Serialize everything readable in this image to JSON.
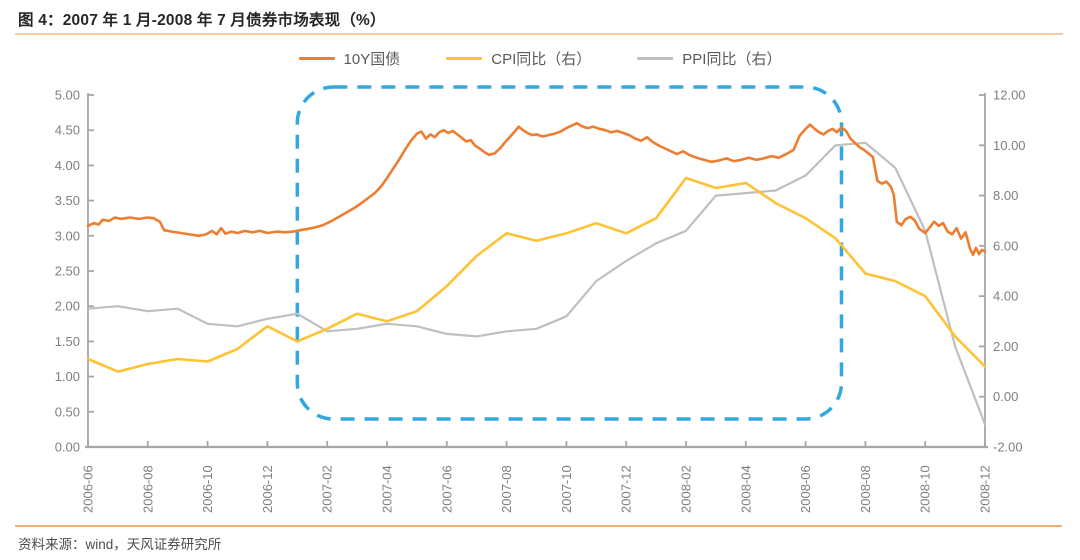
{
  "header": {
    "title": "图 4：2007 年 1 月-2008 年 7 月债券市场表现（%）"
  },
  "legend": {
    "items": [
      {
        "label": "10Y国债",
        "color": "#ED7D31"
      },
      {
        "label": "CPI同比（右）",
        "color": "#FFC234"
      },
      {
        "label": "PPI同比（右）",
        "color": "#BFBFBF"
      }
    ]
  },
  "footer": {
    "source": "资料来源：wind，天风证券研究所"
  },
  "colors": {
    "title_rule": "#F5C9A3",
    "bottom_rule": "#F1AC72",
    "highlight_box": "#31A8E0",
    "axis_line": "#A6A6A6",
    "axis_text": "#7F7F7F"
  },
  "chart_data": {
    "type": "line",
    "title": "图 4：2007 年 1 月-2008 年 7 月债券市场表现（%）",
    "x_tick_labels": [
      "2006-06",
      "2006-08",
      "2006-10",
      "2006-12",
      "2007-02",
      "2007-04",
      "2007-06",
      "2007-08",
      "2007-10",
      "2007-12",
      "2008-02",
      "2008-04",
      "2008-06",
      "2008-08",
      "2008-10",
      "2008-12"
    ],
    "x_range_months": [
      0,
      30
    ],
    "left_axis": {
      "range": [
        0,
        5
      ],
      "tick_step": 0.5,
      "tick_labels": [
        "0.00",
        "0.50",
        "1.00",
        "1.50",
        "2.00",
        "2.50",
        "3.00",
        "3.50",
        "4.00",
        "4.50",
        "5.00"
      ]
    },
    "right_axis": {
      "range": [
        -2,
        12
      ],
      "tick_step": 2,
      "tick_labels": [
        "-2.00",
        "0.00",
        "2.00",
        "4.00",
        "6.00",
        "8.00",
        "10.00",
        "12.00"
      ]
    },
    "highlight_box": {
      "from_month": 7,
      "to_month": 25.2
    },
    "series": [
      {
        "name": "PPI同比（右）",
        "axis": "right",
        "color": "#BFBFBF",
        "width": 2.2,
        "months": [
          "2006-06",
          "2006-07",
          "2006-08",
          "2006-09",
          "2006-10",
          "2006-11",
          "2006-12",
          "2007-01",
          "2007-02",
          "2007-03",
          "2007-04",
          "2007-05",
          "2007-06",
          "2007-07",
          "2007-08",
          "2007-09",
          "2007-10",
          "2007-11",
          "2007-12",
          "2008-01",
          "2008-02",
          "2008-03",
          "2008-04",
          "2008-05",
          "2008-06",
          "2008-07",
          "2008-08",
          "2008-09",
          "2008-10",
          "2008-11",
          "2008-12"
        ],
        "values_monthly": [
          3.5,
          3.6,
          3.4,
          3.5,
          2.9,
          2.8,
          3.1,
          3.3,
          2.6,
          2.7,
          2.9,
          2.8,
          2.5,
          2.4,
          2.6,
          2.7,
          3.2,
          4.6,
          5.4,
          6.1,
          6.6,
          8.0,
          8.1,
          8.2,
          8.8,
          10.0,
          10.1,
          9.1,
          6.6,
          2.0,
          -1.1
        ]
      },
      {
        "name": "CPI同比（右）",
        "axis": "right",
        "color": "#FFC234",
        "width": 2.6,
        "months": [
          "2006-06",
          "2006-07",
          "2006-08",
          "2006-09",
          "2006-10",
          "2006-11",
          "2006-12",
          "2007-01",
          "2007-02",
          "2007-03",
          "2007-04",
          "2007-05",
          "2007-06",
          "2007-07",
          "2007-08",
          "2007-09",
          "2007-10",
          "2007-11",
          "2007-12",
          "2008-01",
          "2008-02",
          "2008-03",
          "2008-04",
          "2008-05",
          "2008-06",
          "2008-07",
          "2008-08",
          "2008-09",
          "2008-10",
          "2008-11",
          "2008-12"
        ],
        "values_monthly": [
          1.5,
          1.0,
          1.3,
          1.5,
          1.4,
          1.9,
          2.8,
          2.2,
          2.7,
          3.3,
          3.0,
          3.4,
          4.4,
          5.6,
          6.5,
          6.2,
          6.5,
          6.9,
          6.5,
          7.1,
          8.7,
          8.3,
          8.5,
          7.7,
          7.1,
          6.3,
          4.9,
          4.6,
          4.0,
          2.4,
          1.2
        ]
      },
      {
        "name": "10Y国债",
        "axis": "left",
        "color": "#ED7D31",
        "width": 2.6,
        "points": [
          [
            0,
            3.14
          ],
          [
            0.2,
            3.18
          ],
          [
            0.35,
            3.16
          ],
          [
            0.5,
            3.23
          ],
          [
            0.7,
            3.21
          ],
          [
            0.9,
            3.26
          ],
          [
            1.1,
            3.24
          ],
          [
            1.4,
            3.26
          ],
          [
            1.7,
            3.24
          ],
          [
            2.0,
            3.26
          ],
          [
            2.2,
            3.25
          ],
          [
            2.4,
            3.2
          ],
          [
            2.55,
            3.08
          ],
          [
            2.8,
            3.06
          ],
          [
            3.1,
            3.04
          ],
          [
            3.4,
            3.02
          ],
          [
            3.7,
            3.0
          ],
          [
            3.95,
            3.02
          ],
          [
            4.15,
            3.07
          ],
          [
            4.3,
            3.02
          ],
          [
            4.45,
            3.11
          ],
          [
            4.6,
            3.03
          ],
          [
            4.8,
            3.06
          ],
          [
            5.0,
            3.04
          ],
          [
            5.25,
            3.07
          ],
          [
            5.5,
            3.05
          ],
          [
            5.75,
            3.07
          ],
          [
            6.0,
            3.04
          ],
          [
            6.3,
            3.06
          ],
          [
            6.6,
            3.05
          ],
          [
            6.85,
            3.06
          ],
          [
            7.1,
            3.08
          ],
          [
            7.35,
            3.1
          ],
          [
            7.6,
            3.12
          ],
          [
            7.85,
            3.15
          ],
          [
            8.1,
            3.2
          ],
          [
            8.35,
            3.26
          ],
          [
            8.6,
            3.32
          ],
          [
            8.85,
            3.38
          ],
          [
            9.1,
            3.45
          ],
          [
            9.35,
            3.53
          ],
          [
            9.6,
            3.61
          ],
          [
            9.8,
            3.7
          ],
          [
            10.0,
            3.82
          ],
          [
            10.2,
            3.95
          ],
          [
            10.4,
            4.08
          ],
          [
            10.6,
            4.22
          ],
          [
            10.8,
            4.35
          ],
          [
            11.0,
            4.45
          ],
          [
            11.15,
            4.48
          ],
          [
            11.3,
            4.38
          ],
          [
            11.45,
            4.44
          ],
          [
            11.6,
            4.4
          ],
          [
            11.75,
            4.47
          ],
          [
            11.9,
            4.5
          ],
          [
            12.05,
            4.46
          ],
          [
            12.2,
            4.49
          ],
          [
            12.35,
            4.44
          ],
          [
            12.5,
            4.39
          ],
          [
            12.65,
            4.34
          ],
          [
            12.8,
            4.36
          ],
          [
            12.95,
            4.28
          ],
          [
            13.1,
            4.24
          ],
          [
            13.25,
            4.19
          ],
          [
            13.4,
            4.15
          ],
          [
            13.6,
            4.17
          ],
          [
            13.8,
            4.25
          ],
          [
            13.95,
            4.33
          ],
          [
            14.1,
            4.4
          ],
          [
            14.25,
            4.47
          ],
          [
            14.4,
            4.55
          ],
          [
            14.55,
            4.5
          ],
          [
            14.7,
            4.46
          ],
          [
            14.85,
            4.43
          ],
          [
            15.0,
            4.44
          ],
          [
            15.2,
            4.41
          ],
          [
            15.4,
            4.43
          ],
          [
            15.6,
            4.45
          ],
          [
            15.8,
            4.48
          ],
          [
            16.0,
            4.53
          ],
          [
            16.2,
            4.57
          ],
          [
            16.35,
            4.6
          ],
          [
            16.5,
            4.56
          ],
          [
            16.7,
            4.53
          ],
          [
            16.9,
            4.55
          ],
          [
            17.1,
            4.52
          ],
          [
            17.3,
            4.5
          ],
          [
            17.5,
            4.47
          ],
          [
            17.7,
            4.49
          ],
          [
            17.9,
            4.46
          ],
          [
            18.1,
            4.43
          ],
          [
            18.3,
            4.38
          ],
          [
            18.5,
            4.35
          ],
          [
            18.7,
            4.4
          ],
          [
            18.9,
            4.33
          ],
          [
            19.1,
            4.28
          ],
          [
            19.3,
            4.24
          ],
          [
            19.5,
            4.2
          ],
          [
            19.7,
            4.16
          ],
          [
            19.9,
            4.2
          ],
          [
            20.1,
            4.15
          ],
          [
            20.35,
            4.11
          ],
          [
            20.6,
            4.08
          ],
          [
            20.85,
            4.05
          ],
          [
            21.1,
            4.07
          ],
          [
            21.35,
            4.1
          ],
          [
            21.6,
            4.06
          ],
          [
            21.85,
            4.08
          ],
          [
            22.1,
            4.11
          ],
          [
            22.35,
            4.08
          ],
          [
            22.6,
            4.1
          ],
          [
            22.85,
            4.13
          ],
          [
            23.1,
            4.11
          ],
          [
            23.35,
            4.16
          ],
          [
            23.6,
            4.22
          ],
          [
            23.8,
            4.42
          ],
          [
            24.0,
            4.52
          ],
          [
            24.15,
            4.58
          ],
          [
            24.3,
            4.52
          ],
          [
            24.45,
            4.47
          ],
          [
            24.6,
            4.44
          ],
          [
            24.75,
            4.49
          ],
          [
            24.9,
            4.52
          ],
          [
            25.05,
            4.47
          ],
          [
            25.2,
            4.54
          ],
          [
            25.35,
            4.49
          ],
          [
            25.5,
            4.38
          ],
          [
            25.65,
            4.32
          ],
          [
            25.8,
            4.26
          ],
          [
            25.95,
            4.22
          ],
          [
            26.1,
            4.17
          ],
          [
            26.25,
            4.12
          ],
          [
            26.4,
            3.78
          ],
          [
            26.55,
            3.74
          ],
          [
            26.7,
            3.77
          ],
          [
            26.85,
            3.7
          ],
          [
            26.95,
            3.58
          ],
          [
            27.05,
            3.2
          ],
          [
            27.2,
            3.15
          ],
          [
            27.35,
            3.24
          ],
          [
            27.5,
            3.27
          ],
          [
            27.65,
            3.22
          ],
          [
            27.8,
            3.1
          ],
          [
            28.0,
            3.04
          ],
          [
            28.15,
            3.12
          ],
          [
            28.3,
            3.2
          ],
          [
            28.45,
            3.14
          ],
          [
            28.6,
            3.18
          ],
          [
            28.75,
            3.06
          ],
          [
            28.9,
            3.02
          ],
          [
            29.05,
            3.11
          ],
          [
            29.2,
            2.96
          ],
          [
            29.35,
            3.05
          ],
          [
            29.5,
            2.82
          ],
          [
            29.6,
            2.73
          ],
          [
            29.7,
            2.83
          ],
          [
            29.8,
            2.74
          ],
          [
            29.9,
            2.8
          ],
          [
            30,
            2.78
          ]
        ]
      }
    ]
  }
}
